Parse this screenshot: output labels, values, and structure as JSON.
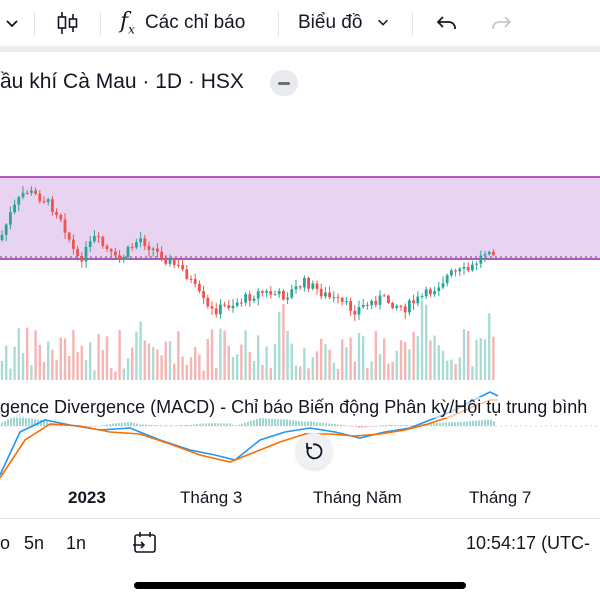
{
  "toolbar": {
    "indicators_label": "Các chỉ báo",
    "chart_label": "Biểu đồ"
  },
  "symbol": {
    "title": "ầu khí Cà Mau · 1D · HSX"
  },
  "macd": {
    "label": "gence Divergence (MACD) - Chỉ báo Biến động Phân kỳ/Hội tụ trung bình"
  },
  "time_axis": {
    "labels": [
      "2023",
      "Tháng 3",
      "Tháng Năm",
      "Tháng 7"
    ]
  },
  "bottom": {
    "range_1": "o",
    "range_2": "5n",
    "range_3": "1n",
    "clock": "10:54:17 (UTC-"
  },
  "colors": {
    "up": "#26a69a",
    "down": "#ef5350",
    "zone_fill": "#e8d4f0",
    "zone_line": "#9c27b0",
    "macd_line": "#2196f3",
    "signal_line": "#ff6d00"
  },
  "icons": {
    "chevron": "chevron-down-icon",
    "candles": "candlestick-icon",
    "function": "fx-icon",
    "undo": "undo-icon",
    "redo": "redo-icon",
    "calendar": "calendar-range-icon",
    "reset": "reset-chart-icon"
  }
}
